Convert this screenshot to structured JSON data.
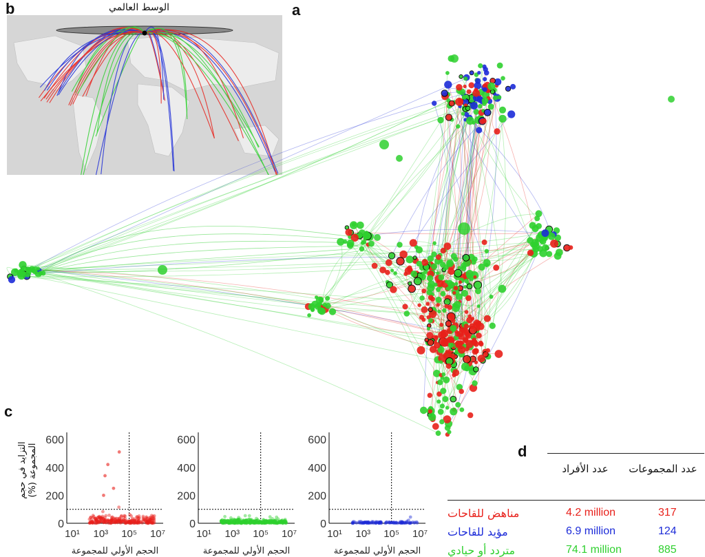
{
  "panel_labels": {
    "a": "a",
    "b": "b",
    "c": "c",
    "d": "d"
  },
  "map": {
    "title": "الوسط العالمي"
  },
  "colors": {
    "opposed": "#e8201a",
    "supportive": "#1c2bd8",
    "neutral": "#2fd02f"
  },
  "chart_data": [
    {
      "type": "scatter",
      "series_color": "#e8201a",
      "x_scale": "log",
      "ylim": [
        0,
        650
      ],
      "yticks": [
        "0",
        "200",
        "400",
        "600"
      ],
      "xticks": [
        "10¹",
        "10³",
        "10⁵",
        "10⁷"
      ],
      "xlabel": "الحجم الأولي للمجموعة",
      "ylabel": "التزايد في حجم المجموعة (%)",
      "hline": 100,
      "vline_x": "10⁵"
    },
    {
      "type": "scatter",
      "series_color": "#2fd02f",
      "x_scale": "log",
      "ylim": [
        0,
        650
      ],
      "yticks": [
        "0",
        "200",
        "400",
        "600"
      ],
      "xticks": [
        "10¹",
        "10³",
        "10⁵",
        "10⁷"
      ],
      "xlabel": "الحجم الأولي للمجموعة",
      "ylabel": "",
      "hline": 100,
      "vline_x": "10⁵"
    },
    {
      "type": "scatter",
      "series_color": "#1c2bd8",
      "x_scale": "log",
      "ylim": [
        0,
        650
      ],
      "yticks": [
        "0",
        "200",
        "400",
        "600"
      ],
      "xticks": [
        "10¹",
        "10³",
        "10⁵",
        "10⁷"
      ],
      "xlabel": "الحجم الأولي للمجموعة",
      "ylabel": "",
      "hline": 100,
      "vline_x": "10⁵"
    }
  ],
  "table": {
    "headers": {
      "clusters": "عدد المجموعات",
      "individuals": "عدد الأفراد"
    },
    "rows": [
      {
        "label": "مناهض للقاحات",
        "individuals": "4.2 million",
        "clusters": "317",
        "color": "#e8201a"
      },
      {
        "label": "مؤيد للقاحات",
        "individuals": "6.9 million",
        "clusters": "124",
        "color": "#1c2bd8"
      },
      {
        "label": "متردد أو حيادي",
        "individuals": "74.1 million",
        "clusters": "885",
        "color": "#2fd02f"
      }
    ]
  }
}
